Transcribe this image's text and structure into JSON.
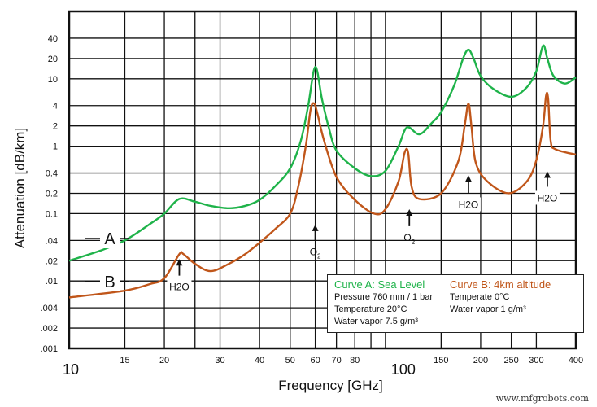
{
  "chart_data": {
    "type": "line",
    "xlabel": "Frequency [GHz]",
    "ylabel": "Attenuation [dB/km]",
    "x_scale": "log",
    "y_scale": "log",
    "xlim": [
      10,
      400
    ],
    "ylim": [
      0.001,
      100
    ],
    "grid": true,
    "x_ticks": [
      10,
      15,
      20,
      25,
      30,
      40,
      50,
      60,
      70,
      80,
      90,
      100,
      150,
      200,
      250,
      300,
      400
    ],
    "x_tick_labels": [
      {
        "value": 15,
        "label": "15"
      },
      {
        "value": 20,
        "label": "20"
      },
      {
        "value": 30,
        "label": "30"
      },
      {
        "value": 40,
        "label": "40"
      },
      {
        "value": 50,
        "label": "50"
      },
      {
        "value": 60,
        "label": "60"
      },
      {
        "value": 70,
        "label": "70"
      },
      {
        "value": 80,
        "label": "80"
      },
      {
        "value": 150,
        "label": "150"
      },
      {
        "value": 200,
        "label": "200"
      },
      {
        "value": 250,
        "label": "250"
      },
      {
        "value": 300,
        "label": "300"
      },
      {
        "value": 400,
        "label": "400"
      }
    ],
    "x_major_labels": [
      {
        "value": 10,
        "label": "10"
      },
      {
        "value": 100,
        "label": "100"
      }
    ],
    "y_ticks": [
      {
        "value": 40,
        "label": "40"
      },
      {
        "value": 20,
        "label": "20"
      },
      {
        "value": 10,
        "label": "10"
      },
      {
        "value": 4,
        "label": "4"
      },
      {
        "value": 2,
        "label": "2"
      },
      {
        "value": 1,
        "label": "1"
      },
      {
        "value": 0.4,
        "label": "0.4"
      },
      {
        "value": 0.2,
        "label": "0.2"
      },
      {
        "value": 0.1,
        "label": "0.1"
      },
      {
        "value": 0.04,
        "label": ".04"
      },
      {
        "value": 0.02,
        "label": ".02"
      },
      {
        "value": 0.01,
        "label": ".01"
      },
      {
        "value": 0.004,
        "label": ".004"
      },
      {
        "value": 0.002,
        "label": ".002"
      },
      {
        "value": 0.001,
        "label": ".001"
      }
    ],
    "series": [
      {
        "name": "A",
        "color": "#1fb34a",
        "points": [
          [
            10,
            0.02
          ],
          [
            12.5,
            0.028
          ],
          [
            15,
            0.04
          ],
          [
            18,
            0.07
          ],
          [
            20,
            0.1
          ],
          [
            22.3,
            0.165
          ],
          [
            25,
            0.15
          ],
          [
            28,
            0.13
          ],
          [
            32,
            0.12
          ],
          [
            36,
            0.13
          ],
          [
            40,
            0.16
          ],
          [
            45,
            0.26
          ],
          [
            50,
            0.47
          ],
          [
            54,
            1.2
          ],
          [
            57,
            4
          ],
          [
            60,
            15
          ],
          [
            63,
            5
          ],
          [
            66,
            2
          ],
          [
            70,
            0.86
          ],
          [
            80,
            0.47
          ],
          [
            90,
            0.36
          ],
          [
            100,
            0.43
          ],
          [
            110,
            1.0
          ],
          [
            117,
            1.9
          ],
          [
            128,
            1.5
          ],
          [
            140,
            2.2
          ],
          [
            150,
            3.2
          ],
          [
            165,
            8
          ],
          [
            176,
            20
          ],
          [
            183,
            27
          ],
          [
            190,
            20
          ],
          [
            200,
            11
          ],
          [
            220,
            7
          ],
          [
            251,
            5.4
          ],
          [
            280,
            7.5
          ],
          [
            300,
            13
          ],
          [
            315,
            31
          ],
          [
            325,
            20
          ],
          [
            340,
            11
          ],
          [
            370,
            8.5
          ],
          [
            400,
            10.5
          ]
        ]
      },
      {
        "name": "B",
        "color": "#c0561a",
        "points": [
          [
            10,
            0.0057
          ],
          [
            15,
            0.0072
          ],
          [
            18,
            0.009
          ],
          [
            20,
            0.011
          ],
          [
            22.3,
            0.025
          ],
          [
            23,
            0.025
          ],
          [
            25,
            0.018
          ],
          [
            28,
            0.014
          ],
          [
            32,
            0.018
          ],
          [
            36,
            0.025
          ],
          [
            40,
            0.037
          ],
          [
            45,
            0.06
          ],
          [
            50,
            0.1
          ],
          [
            53,
            0.25
          ],
          [
            56,
            1.0
          ],
          [
            58,
            3.5
          ],
          [
            59.5,
            4.3
          ],
          [
            61,
            3
          ],
          [
            64,
            1.2
          ],
          [
            70,
            0.35
          ],
          [
            80,
            0.16
          ],
          [
            92,
            0.1
          ],
          [
            100,
            0.116
          ],
          [
            110,
            0.3
          ],
          [
            115,
            0.8
          ],
          [
            118,
            0.8
          ],
          [
            121,
            0.25
          ],
          [
            128,
            0.165
          ],
          [
            150,
            0.2
          ],
          [
            170,
            0.6
          ],
          [
            178,
            2
          ],
          [
            183,
            4.3
          ],
          [
            187,
            2
          ],
          [
            193,
            0.57
          ],
          [
            210,
            0.3
          ],
          [
            245,
            0.2
          ],
          [
            280,
            0.3
          ],
          [
            300,
            0.62
          ],
          [
            315,
            2
          ],
          [
            322,
            5.6
          ],
          [
            327,
            5
          ],
          [
            333,
            1.2
          ],
          [
            345,
            0.9
          ],
          [
            400,
            0.75
          ]
        ]
      }
    ],
    "annotations": [
      {
        "text": "H2O",
        "main": "H",
        "sub": "2",
        "rest": "O",
        "freq": 22.3,
        "arrow_from": 0.012,
        "arrow_to": 0.02
      },
      {
        "text": "O2",
        "main": "O",
        "sub": "2",
        "rest": "",
        "freq": 60,
        "arrow_from": 0.04,
        "arrow_to": 0.065
      },
      {
        "text": "O2",
        "main": "O",
        "sub": "2",
        "rest": "",
        "freq": 119,
        "arrow_from": 0.065,
        "arrow_to": 0.11
      },
      {
        "text": "H2O",
        "main": "H",
        "sub": "2",
        "rest": "O",
        "freq": 183,
        "arrow_from": 0.2,
        "arrow_to": 0.35
      },
      {
        "text": "H2O",
        "main": "H",
        "sub": "2",
        "rest": "O",
        "freq": 325,
        "arrow_from": 0.25,
        "arrow_to": 0.4
      }
    ],
    "legend": {
      "placement": "bottom-right",
      "a_title": "Curve A: Sea Level",
      "a_lines": [
        "Pressure 760 mm / 1 bar",
        "Temperature 20°C",
        "Water vapor 7.5 g/m³"
      ],
      "b_title": "Curve B: 4km altitude",
      "b_lines": [
        "Temperate 0°C",
        "Water vapor 1 g/m³"
      ]
    }
  },
  "watermark": "www.mfgrobots.com"
}
